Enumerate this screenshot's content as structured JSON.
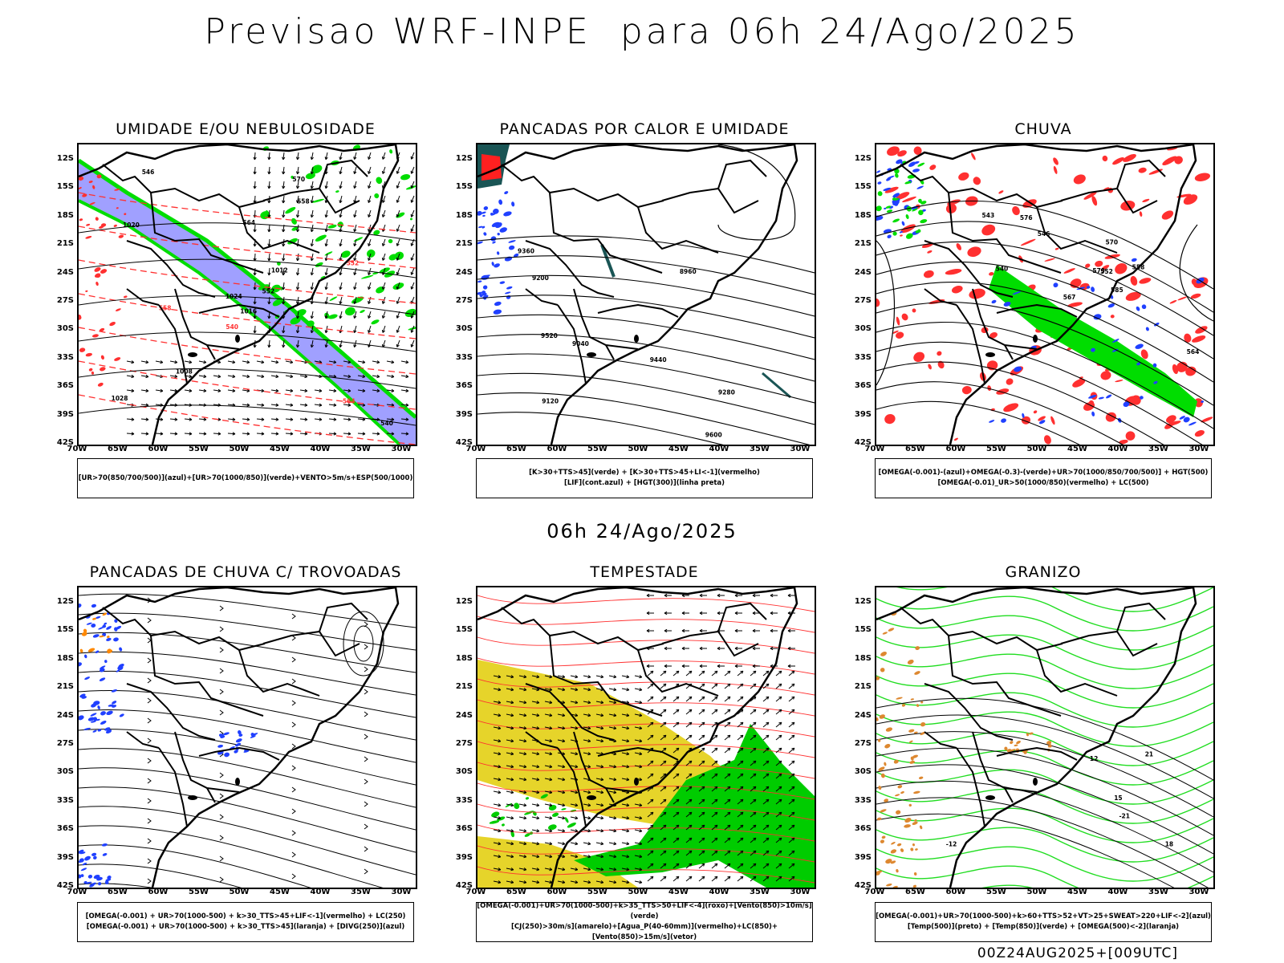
{
  "header": {
    "title": "Previsao WRF-INPE  para 06h 24/Ago/2025"
  },
  "row2_title": "06h 24/Ago/2025",
  "footer": "00Z24AUG2025+[009UTC]",
  "axes": {
    "lat_labels": [
      "12S",
      "15S",
      "18S",
      "21S",
      "24S",
      "27S",
      "30S",
      "33S",
      "36S",
      "39S",
      "42S"
    ],
    "lon_labels": [
      "70W",
      "65W",
      "60W",
      "55W",
      "50W",
      "45W",
      "40W",
      "35W",
      "30W"
    ]
  },
  "panels": [
    {
      "title": "UMIDADE E/OU NEBULOSIDADE",
      "legend": [
        "[UR>70(850/700/500)](azul)+[UR>70(1000/850)](verde)+VENTO>5m/s+ESP(500/1000)"
      ],
      "contour_labels": [
        "1016",
        "1020",
        "1024",
        "1028",
        "1012",
        "1008",
        "570",
        "564",
        "558",
        "552",
        "546",
        "540"
      ],
      "colors": {
        "blue": "#8f8fff",
        "green": "#00dd00",
        "red": "#ff2020"
      }
    },
    {
      "title": "PANCADAS POR CALOR E UMIDADE",
      "legend": [
        "[K>30+TTS>45](verde) + [K>30+TTS>45+LI<-1](vermelho)",
        "[LIF](cont.azul) + [HGT(300)](linha preta)"
      ],
      "contour_labels": [
        "9600",
        "9520",
        "9440",
        "9360",
        "9280",
        "9200",
        "9120",
        "9040",
        "8960"
      ],
      "colors": {
        "blue": "#2040ff",
        "red": "#ff2020",
        "teal": "#1a5555"
      }
    },
    {
      "title": "CHUVA",
      "legend": [
        "[OMEGA(-0.001)-(azul)+OMEGA(-0.3)-(verde)+UR>70(1000/850/700/500)] + HGT(500)",
        "[OMEGA(-0.01)_UR>50(1000/850)(vermelho) + LC(500)"
      ],
      "contour_labels": [
        "585",
        "579",
        "576",
        "570",
        "567",
        "564",
        "558",
        "552",
        "546",
        "543",
        "540"
      ],
      "colors": {
        "red": "#ff3030",
        "green": "#00dd00",
        "blue": "#2040ff"
      }
    },
    {
      "title": "PANCADAS DE CHUVA C/ TROVOADAS",
      "legend": [
        "[OMEGA(-0.001) + UR>70(1000-500) + k>30_TTS>45+LIF<-1](vermelho) + LC(250)",
        "[OMEGA(-0.001) + UR>70(1000-500) + k>30_TTS>45](laranja) + [DIVG(250)](azul)"
      ],
      "colors": {
        "blue": "#2040ff",
        "orange": "#ff8800",
        "red": "#ff2020"
      }
    },
    {
      "title": "TEMPESTADE",
      "legend": [
        "[OMEGA(-0.001)+UR>70(1000-500)+k>35_TTS>50+LIF<-4](roxo)+[Vento(850)>10m/s](verde)",
        "[CJ(250)>30m/s](amarelo)+[Agua_P(40-60mm)](vermelho)+LC(850)+[Vento(850)>15m/s](vetor)"
      ],
      "colors": {
        "yellow": "#e6d42a",
        "green": "#00cc00",
        "red": "#ff3030"
      }
    },
    {
      "title": "GRANIZO",
      "legend": [
        "[OMEGA(-0.001)+UR>70(1000-500)+k>60+TTS>52+VT>25+SWEAT>220+LIF<-2](azul)",
        "[Temp(500)](preto) + [Temp(850)](verde) + [OMEGA(500)<-2](laranja)"
      ],
      "contour_labels": [
        "-12",
        "-21",
        "12",
        "15",
        "18",
        "21"
      ],
      "colors": {
        "green": "#20dd20",
        "orange": "#dd8830"
      }
    }
  ]
}
